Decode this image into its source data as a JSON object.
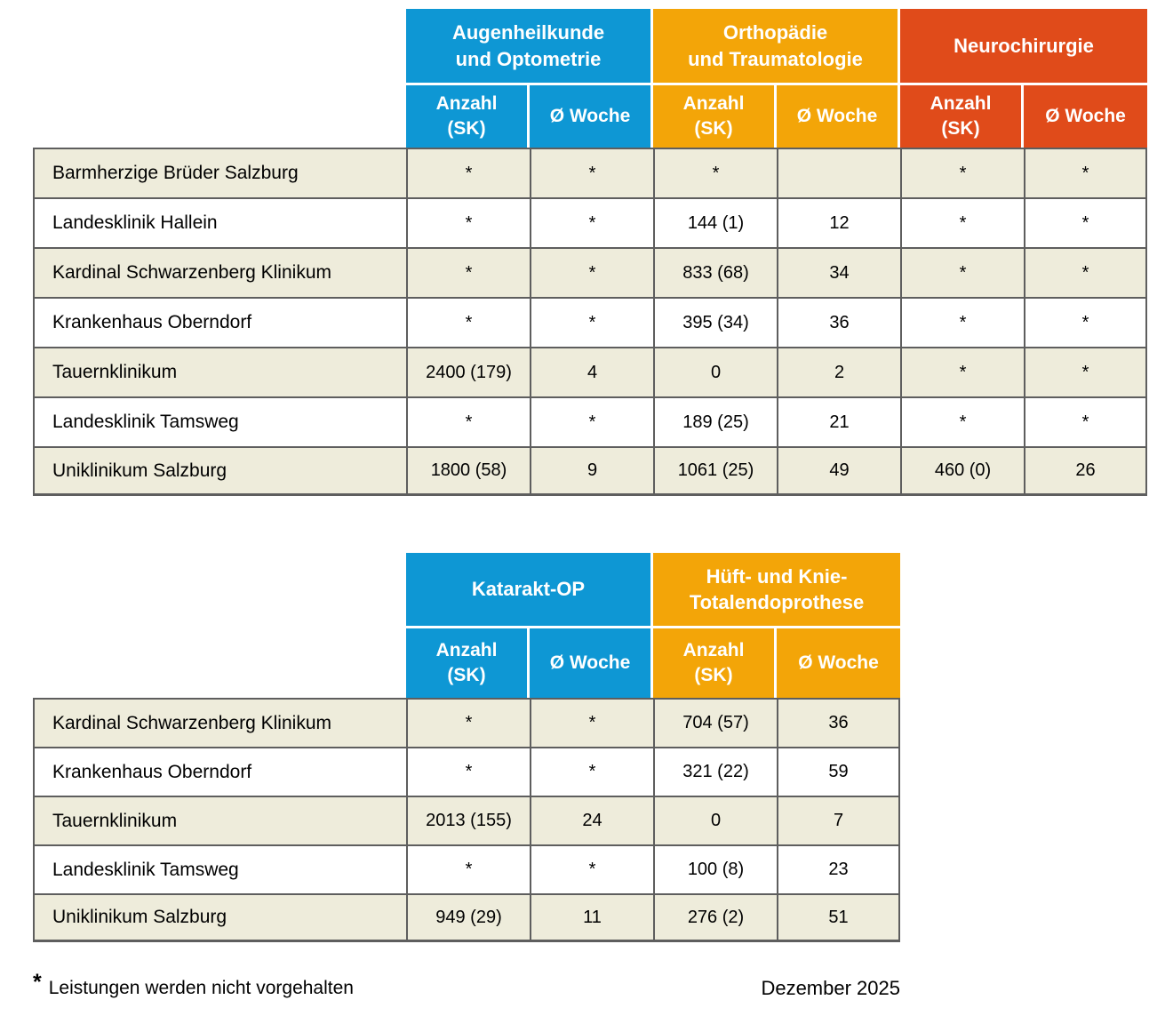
{
  "colors": {
    "blue": "#0E97D4",
    "orange": "#F3A508",
    "red": "#E04B1A",
    "row_beige": "#EEECDB",
    "row_white": "#FFFFFF",
    "border": "#5E5E5E",
    "header_text": "#FFFFFF",
    "body_text": "#000000"
  },
  "table1": {
    "groups": [
      {
        "label": "Augenheilkunde\nund Optometrie"
      },
      {
        "label": "Orthopädie\nund Traumatologie"
      },
      {
        "label": "Neurochirurgie"
      }
    ],
    "sub_columns": [
      "Anzahl\n(SK)",
      "Ø Woche",
      "Anzahl\n(SK)",
      "Ø Woche",
      "Anzahl\n(SK)",
      "Ø Woche"
    ],
    "rows": [
      {
        "label": "Barmherzige Brüder Salzburg",
        "values": [
          "*",
          "*",
          "*",
          "",
          "*",
          "*"
        ]
      },
      {
        "label": "Landesklinik Hallein",
        "values": [
          "*",
          "*",
          "144 (1)",
          "12",
          "*",
          "*"
        ]
      },
      {
        "label": "Kardinal Schwarzenberg Klinikum",
        "values": [
          "*",
          "*",
          "833 (68)",
          "34",
          "*",
          "*"
        ]
      },
      {
        "label": "Krankenhaus Oberndorf",
        "values": [
          "*",
          "*",
          "395 (34)",
          "36",
          "*",
          "*"
        ]
      },
      {
        "label": "Tauernklinikum",
        "values": [
          "2400 (179)",
          "4",
          "0",
          "2",
          "*",
          "*"
        ]
      },
      {
        "label": "Landesklinik Tamsweg",
        "values": [
          "*",
          "*",
          "189 (25)",
          "21",
          "*",
          "*"
        ]
      },
      {
        "label": "Uniklinikum Salzburg",
        "values": [
          "1800 (58)",
          "9",
          "1061 (25)",
          "49",
          "460 (0)",
          "26"
        ]
      }
    ]
  },
  "table2": {
    "groups": [
      {
        "label": "Katarakt-OP"
      },
      {
        "label": "Hüft- und Knie-\nTotalendoprothese"
      }
    ],
    "sub_columns": [
      "Anzahl\n(SK)",
      "Ø Woche",
      "Anzahl\n(SK)",
      "Ø Woche"
    ],
    "rows": [
      {
        "label": "Kardinal Schwarzenberg Klinikum",
        "values": [
          "*",
          "*",
          "704 (57)",
          "36"
        ]
      },
      {
        "label": "Krankenhaus Oberndorf",
        "values": [
          "*",
          "*",
          "321 (22)",
          "59"
        ]
      },
      {
        "label": "Tauernklinikum",
        "values": [
          "2013 (155)",
          "24",
          "0",
          "7"
        ]
      },
      {
        "label": "Landesklinik Tamsweg",
        "values": [
          "*",
          "*",
          "100 (8)",
          "23"
        ]
      },
      {
        "label": "Uniklinikum Salzburg",
        "values": [
          "949 (29)",
          "11",
          "276 (2)",
          "51"
        ]
      }
    ]
  },
  "footer": {
    "asterisk": "*",
    "note": "Leistungen werden nicht vorgehalten",
    "date": "Dezember 2025"
  }
}
